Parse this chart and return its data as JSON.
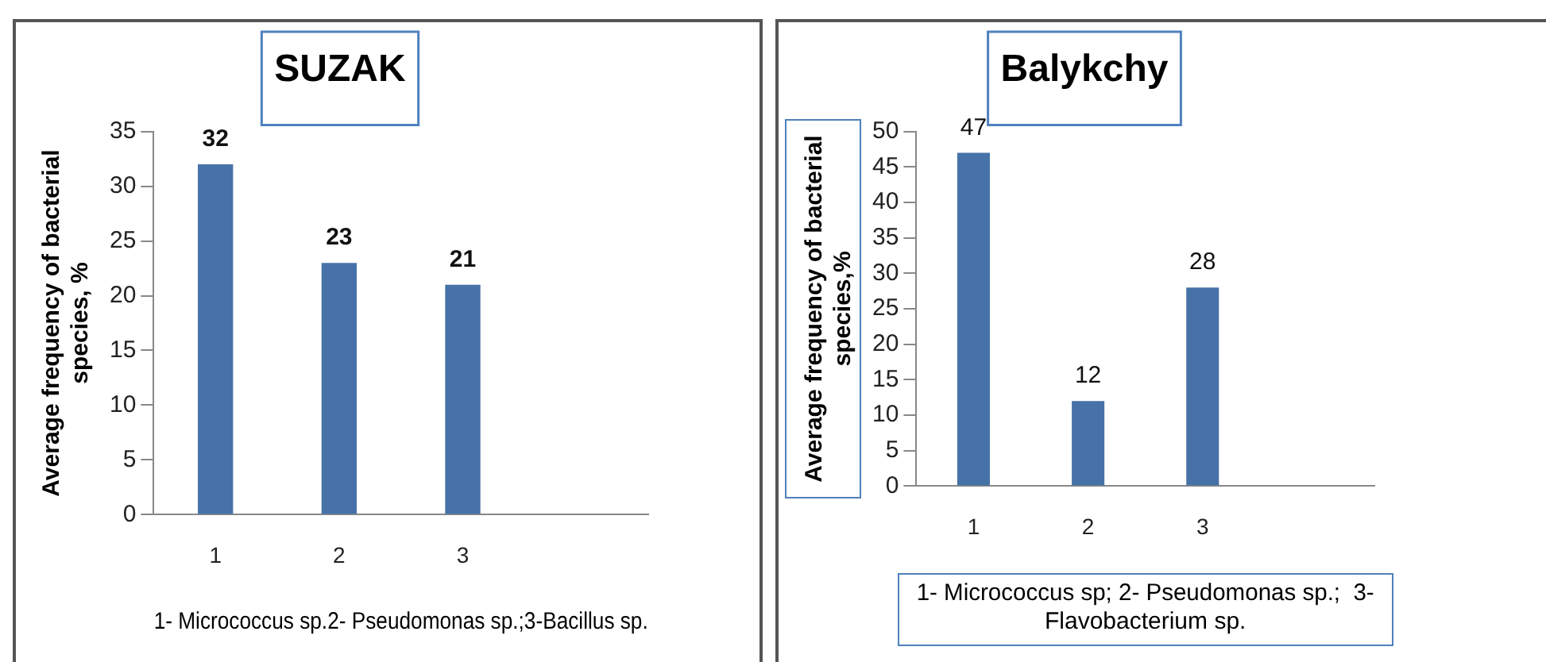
{
  "chart_data": [
    {
      "type": "bar",
      "title": "SUZAK",
      "ylabel": "Average frequency of bacterial species, %",
      "xlabel": "1- Micrococcus sp.2- Pseudomonas sp.;3-Bacillus sp.",
      "categories": [
        "1",
        "2",
        "3",
        null
      ],
      "values": [
        32,
        23,
        21,
        null
      ],
      "color": "#4672a8",
      "ylim": [
        0,
        35
      ],
      "yticks": [
        0,
        5,
        10,
        15,
        20,
        25,
        30,
        35
      ],
      "data_labels": true,
      "grid": false,
      "legend": false
    },
    {
      "type": "bar",
      "title": "Balykchy",
      "ylabel": "Average frequency of bacterial species,%",
      "xlabel": "1- Micrococcus sp; 2- Pseudomonas sp.;  3- Flavobacterium sp.",
      "categories": [
        "1",
        "2",
        "3",
        null
      ],
      "values": [
        47,
        12,
        28,
        null
      ],
      "color": "#4672a8",
      "ylim": [
        0,
        50
      ],
      "yticks": [
        0,
        5,
        10,
        15,
        20,
        25,
        30,
        35,
        40,
        45,
        50
      ],
      "data_labels": true,
      "grid": false,
      "legend": false
    }
  ]
}
